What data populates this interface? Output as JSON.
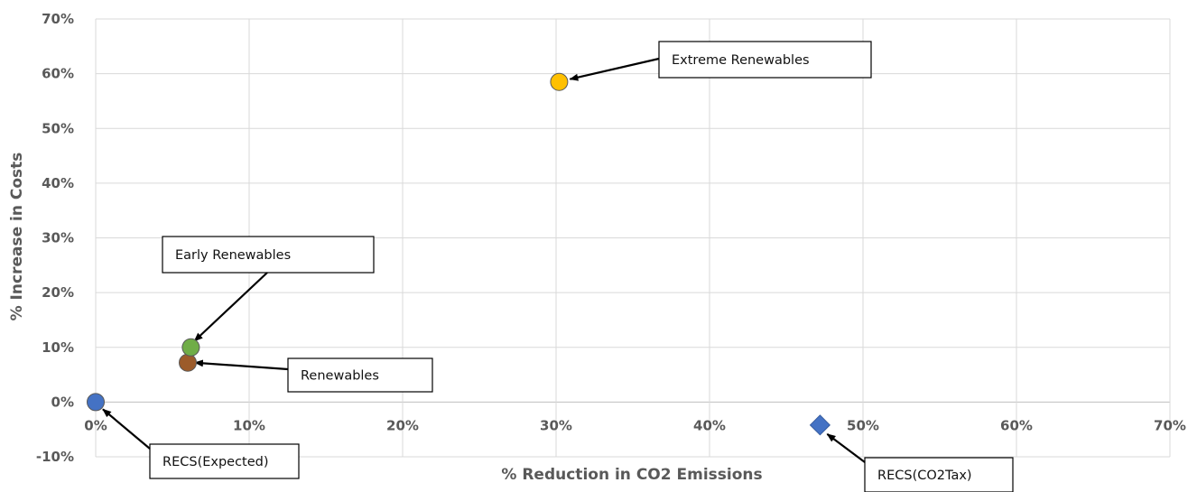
{
  "chart_data": {
    "type": "scatter",
    "title": "",
    "xlabel": "% Reduction in CO2 Emissions",
    "ylabel": "% Increase in Costs",
    "xlim": [
      0,
      70
    ],
    "ylim": [
      -10,
      70
    ],
    "x_ticks": [
      "0%",
      "10%",
      "20%",
      "30%",
      "40%",
      "50%",
      "60%",
      "70%"
    ],
    "y_ticks": [
      "70%",
      "60%",
      "50%",
      "40%",
      "30%",
      "20%",
      "10%",
      "0%",
      "-10%"
    ],
    "grid": true,
    "points": [
      {
        "label": "RECS(Expected)",
        "x": 0.0,
        "y": 0.0,
        "marker": "circle",
        "color": "#4472C4"
      },
      {
        "label": "Renewables",
        "x": 6.0,
        "y": 7.2,
        "marker": "circle",
        "color": "#9C5B2A"
      },
      {
        "label": "Early Renewables",
        "x": 6.2,
        "y": 10.0,
        "marker": "circle",
        "color": "#70AD47"
      },
      {
        "label": "Extreme Renewables",
        "x": 30.2,
        "y": 58.5,
        "marker": "circle",
        "color": "#FFC000"
      },
      {
        "label": "RECS(CO2Tax)",
        "x": 47.2,
        "y": -4.2,
        "marker": "diamond",
        "color": "#4472C4"
      }
    ]
  }
}
